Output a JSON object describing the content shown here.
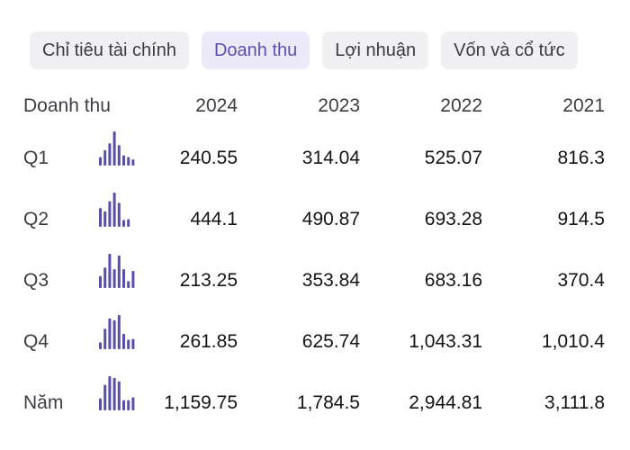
{
  "tabs": [
    {
      "label": "Chỉ tiêu tài chính",
      "active": false
    },
    {
      "label": "Doanh thu",
      "active": true
    },
    {
      "label": "Lợi nhuận",
      "active": false
    },
    {
      "label": "Vốn và cổ tức",
      "active": false
    }
  ],
  "table": {
    "header": {
      "label": "Doanh thu",
      "years": [
        "2024",
        "2023",
        "2022",
        "2021"
      ]
    },
    "rows": [
      {
        "label": "Q1",
        "values": [
          "240.55",
          "314.04",
          "525.07",
          "816.3"
        ],
        "spark": [
          0.25,
          0.45,
          0.65,
          1.0,
          0.6,
          0.3,
          0.25,
          0.18
        ]
      },
      {
        "label": "Q2",
        "values": [
          "444.1",
          "490.87",
          "693.28",
          "914.5"
        ],
        "spark": [
          0.55,
          0.45,
          0.75,
          1.0,
          0.7,
          0.2,
          0.22,
          0.0
        ]
      },
      {
        "label": "Q3",
        "values": [
          "213.25",
          "353.84",
          "683.16",
          "370.4"
        ],
        "spark": [
          0.35,
          0.6,
          1.0,
          0.55,
          0.95,
          0.55,
          0.2,
          0.5
        ]
      },
      {
        "label": "Q4",
        "values": [
          "261.85",
          "625.74",
          "1,043.31",
          "1,010.4"
        ],
        "spark": [
          0.2,
          0.6,
          0.9,
          0.85,
          1.0,
          0.45,
          0.28,
          0.3
        ]
      },
      {
        "label": "Năm",
        "values": [
          "1,159.75",
          "1,784.5",
          "2,944.81",
          "3,111.8"
        ],
        "spark": [
          0.35,
          0.75,
          1.0,
          0.95,
          0.85,
          0.3,
          0.3,
          0.38
        ]
      }
    ]
  },
  "colors": {
    "accent": "#5c4fb0",
    "spark": "#5a4fa8",
    "tab_bg": "#f0f0f3",
    "tab_active_bg": "#eceaf8"
  }
}
